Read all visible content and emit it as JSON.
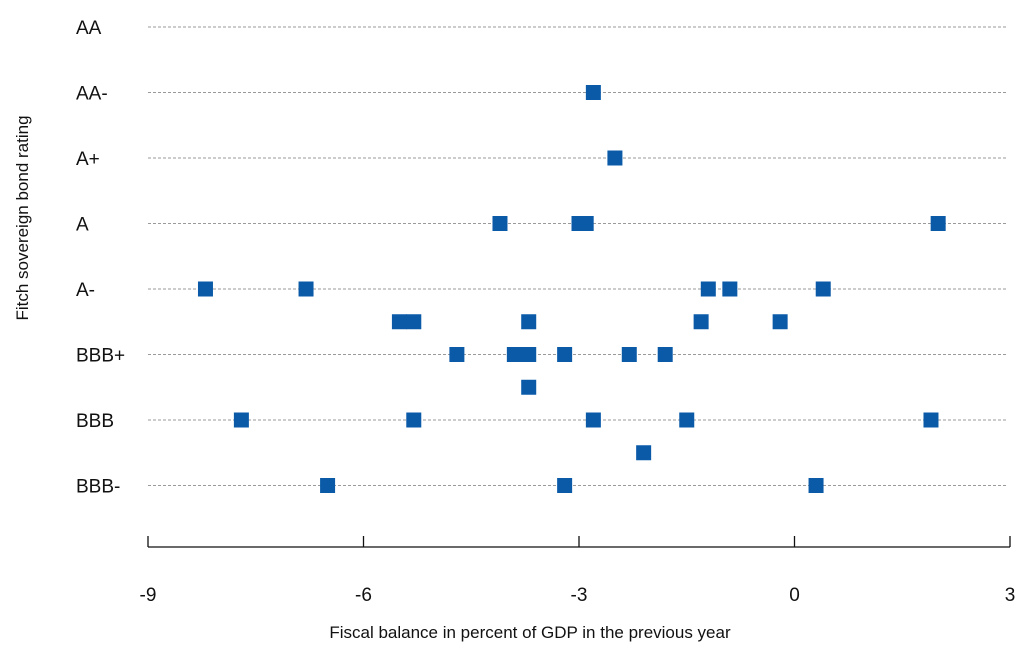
{
  "chart_data": {
    "type": "scatter",
    "title": "",
    "xlabel": "Fiscal balance in percent of GDP in the previous year",
    "ylabel": "Fitch sovereign bond rating",
    "xlim": [
      -9,
      3
    ],
    "x_ticks": [
      "-9",
      "-6",
      "-3",
      "0",
      "3"
    ],
    "y_categories": [
      "BBB-",
      "BBB",
      "BBB+",
      "A-",
      "A",
      "A+",
      "AA-",
      "AA"
    ],
    "y_tick_labels": [
      "AA",
      "AA-",
      "A+",
      "A",
      "A-",
      "BBB+",
      "BBB",
      "BBB-"
    ],
    "grid": true,
    "marker_color": "#0a5aa8",
    "grid_color": "#9a9a9a",
    "points": [
      {
        "x": -2.8,
        "y": 6
      },
      {
        "x": -2.5,
        "y": 5
      },
      {
        "x": -4.1,
        "y": 4
      },
      {
        "x": -3.0,
        "y": 4
      },
      {
        "x": -2.9,
        "y": 4
      },
      {
        "x": 2.0,
        "y": 4
      },
      {
        "x": -8.2,
        "y": 3
      },
      {
        "x": -6.8,
        "y": 3
      },
      {
        "x": -1.2,
        "y": 3
      },
      {
        "x": -0.9,
        "y": 3
      },
      {
        "x": 0.4,
        "y": 3
      },
      {
        "x": -5.5,
        "y": 2.5
      },
      {
        "x": -5.3,
        "y": 2.5
      },
      {
        "x": -3.7,
        "y": 2.5
      },
      {
        "x": -1.3,
        "y": 2.5
      },
      {
        "x": -0.2,
        "y": 2.5
      },
      {
        "x": -4.7,
        "y": 2
      },
      {
        "x": -3.9,
        "y": 2
      },
      {
        "x": -3.7,
        "y": 2
      },
      {
        "x": -3.2,
        "y": 2
      },
      {
        "x": -2.3,
        "y": 2
      },
      {
        "x": -1.8,
        "y": 2
      },
      {
        "x": -3.7,
        "y": 1.5
      },
      {
        "x": -7.7,
        "y": 1
      },
      {
        "x": -5.3,
        "y": 1
      },
      {
        "x": -2.8,
        "y": 1
      },
      {
        "x": -1.5,
        "y": 1
      },
      {
        "x": 1.9,
        "y": 1
      },
      {
        "x": -2.1,
        "y": 0.5
      },
      {
        "x": -6.5,
        "y": 0
      },
      {
        "x": -3.2,
        "y": 0
      },
      {
        "x": 0.3,
        "y": 0
      }
    ]
  }
}
